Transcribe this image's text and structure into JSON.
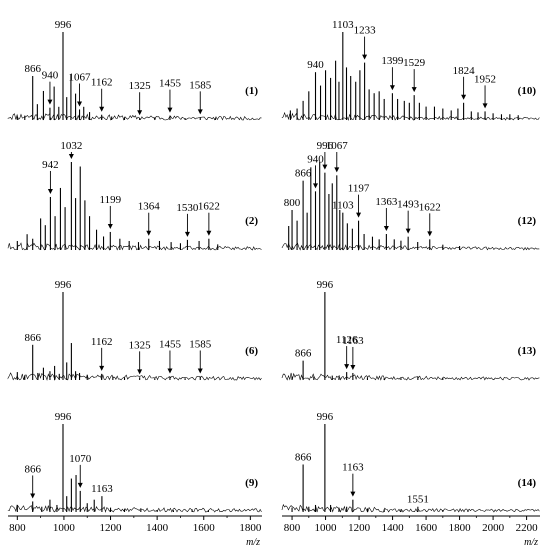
{
  "figure": {
    "left_axis": {
      "xlim": [
        760,
        1850
      ],
      "ticks": [
        800,
        1000,
        1200,
        1400,
        1600,
        1800
      ],
      "unit": "m/z"
    },
    "right_axis": {
      "xlim": [
        740,
        2280
      ],
      "ticks": [
        800,
        1000,
        1200,
        1400,
        1600,
        1800,
        2000,
        2200
      ],
      "unit": "m/z"
    }
  },
  "chart_data": [
    {
      "type": "line",
      "panel_label": "(1)",
      "column": "left",
      "xlabel": "",
      "ylabel": "",
      "xlim": [
        760,
        1850
      ],
      "peaks": [
        {
          "x": 800,
          "y": 4
        },
        {
          "x": 832,
          "y": 5
        },
        {
          "x": 866,
          "y": 50
        },
        {
          "x": 886,
          "y": 18
        },
        {
          "x": 912,
          "y": 33
        },
        {
          "x": 940,
          "y": 14
        },
        {
          "x": 958,
          "y": 38
        },
        {
          "x": 978,
          "y": 15
        },
        {
          "x": 996,
          "y": 100
        },
        {
          "x": 1012,
          "y": 26
        },
        {
          "x": 1030,
          "y": 52
        },
        {
          "x": 1050,
          "y": 30
        },
        {
          "x": 1067,
          "y": 12
        },
        {
          "x": 1085,
          "y": 15
        },
        {
          "x": 1110,
          "y": 9
        },
        {
          "x": 1162,
          "y": 6
        },
        {
          "x": 1205,
          "y": 4
        },
        {
          "x": 1260,
          "y": 3
        },
        {
          "x": 1325,
          "y": 2
        },
        {
          "x": 1390,
          "y": 3
        },
        {
          "x": 1455,
          "y": 5
        },
        {
          "x": 1520,
          "y": 2
        },
        {
          "x": 1585,
          "y": 3
        },
        {
          "x": 1650,
          "y": 2
        }
      ],
      "labels": [
        {
          "text": "866",
          "x": 866,
          "arrow": false
        },
        {
          "text": "996",
          "x": 996,
          "arrow": false
        },
        {
          "text": "940",
          "x": 940,
          "arrow": true
        },
        {
          "text": "1067",
          "x": 1067,
          "arrow": true
        },
        {
          "text": "1162",
          "x": 1162,
          "arrow": true
        },
        {
          "text": "1325",
          "x": 1325,
          "arrow": true
        },
        {
          "text": "1455",
          "x": 1455,
          "arrow": true
        },
        {
          "text": "1585",
          "x": 1585,
          "arrow": true
        }
      ]
    },
    {
      "type": "line",
      "panel_label": "(2)",
      "column": "left",
      "xlabel": "",
      "ylabel": "",
      "xlim": [
        760,
        1850
      ],
      "peaks": [
        {
          "x": 800,
          "y": 8
        },
        {
          "x": 842,
          "y": 14
        },
        {
          "x": 866,
          "y": 10
        },
        {
          "x": 900,
          "y": 28
        },
        {
          "x": 920,
          "y": 22
        },
        {
          "x": 942,
          "y": 47
        },
        {
          "x": 962,
          "y": 30
        },
        {
          "x": 985,
          "y": 55
        },
        {
          "x": 1005,
          "y": 38
        },
        {
          "x": 1032,
          "y": 78
        },
        {
          "x": 1050,
          "y": 46
        },
        {
          "x": 1070,
          "y": 74
        },
        {
          "x": 1090,
          "y": 44
        },
        {
          "x": 1110,
          "y": 30
        },
        {
          "x": 1140,
          "y": 18
        },
        {
          "x": 1170,
          "y": 12
        },
        {
          "x": 1199,
          "y": 16
        },
        {
          "x": 1240,
          "y": 10
        },
        {
          "x": 1280,
          "y": 8
        },
        {
          "x": 1320,
          "y": 7
        },
        {
          "x": 1364,
          "y": 10
        },
        {
          "x": 1410,
          "y": 8
        },
        {
          "x": 1460,
          "y": 7
        },
        {
          "x": 1500,
          "y": 6
        },
        {
          "x": 1530,
          "y": 9
        },
        {
          "x": 1580,
          "y": 8
        },
        {
          "x": 1622,
          "y": 10
        },
        {
          "x": 1660,
          "y": 5
        }
      ],
      "labels": [
        {
          "text": "942",
          "x": 942,
          "arrow": true
        },
        {
          "text": "1032",
          "x": 1032,
          "arrow": true
        },
        {
          "text": "1199",
          "x": 1199,
          "arrow": true
        },
        {
          "text": "1364",
          "x": 1364,
          "arrow": true
        },
        {
          "text": "1530",
          "x": 1530,
          "arrow": true
        },
        {
          "text": "1622",
          "x": 1622,
          "arrow": true
        }
      ]
    },
    {
      "type": "line",
      "panel_label": "(6)",
      "column": "left",
      "xlabel": "",
      "ylabel": "",
      "xlim": [
        760,
        1850
      ],
      "peaks": [
        {
          "x": 800,
          "y": 9
        },
        {
          "x": 832,
          "y": 5
        },
        {
          "x": 866,
          "y": 40
        },
        {
          "x": 888,
          "y": 8
        },
        {
          "x": 912,
          "y": 14
        },
        {
          "x": 940,
          "y": 10
        },
        {
          "x": 960,
          "y": 16
        },
        {
          "x": 980,
          "y": 7
        },
        {
          "x": 996,
          "y": 100
        },
        {
          "x": 1012,
          "y": 20
        },
        {
          "x": 1032,
          "y": 42
        },
        {
          "x": 1050,
          "y": 10
        },
        {
          "x": 1067,
          "y": 8
        },
        {
          "x": 1100,
          "y": 6
        },
        {
          "x": 1162,
          "y": 7
        },
        {
          "x": 1210,
          "y": 4
        },
        {
          "x": 1260,
          "y": 3
        },
        {
          "x": 1325,
          "y": 3
        },
        {
          "x": 1390,
          "y": 2
        },
        {
          "x": 1455,
          "y": 4
        },
        {
          "x": 1520,
          "y": 2
        },
        {
          "x": 1585,
          "y": 4
        }
      ],
      "labels": [
        {
          "text": "996",
          "x": 996,
          "arrow": false
        },
        {
          "text": "866",
          "x": 866,
          "arrow": false
        },
        {
          "text": "1162",
          "x": 1162,
          "arrow": true
        },
        {
          "text": "1325",
          "x": 1325,
          "arrow": true
        },
        {
          "text": "1455",
          "x": 1455,
          "arrow": true
        },
        {
          "text": "1585",
          "x": 1585,
          "arrow": true
        }
      ]
    },
    {
      "type": "line",
      "panel_label": "(9)",
      "column": "left",
      "xlabel": "",
      "ylabel": "",
      "xlim": [
        760,
        1850
      ],
      "peaks": [
        {
          "x": 800,
          "y": 8
        },
        {
          "x": 866,
          "y": 12
        },
        {
          "x": 905,
          "y": 6
        },
        {
          "x": 940,
          "y": 14
        },
        {
          "x": 970,
          "y": 8
        },
        {
          "x": 996,
          "y": 100
        },
        {
          "x": 1012,
          "y": 18
        },
        {
          "x": 1032,
          "y": 38
        },
        {
          "x": 1052,
          "y": 42
        },
        {
          "x": 1070,
          "y": 24
        },
        {
          "x": 1100,
          "y": 10
        },
        {
          "x": 1130,
          "y": 14
        },
        {
          "x": 1163,
          "y": 18
        },
        {
          "x": 1200,
          "y": 5
        },
        {
          "x": 1260,
          "y": 3
        },
        {
          "x": 1330,
          "y": 3
        },
        {
          "x": 1400,
          "y": 2
        },
        {
          "x": 1470,
          "y": 2
        },
        {
          "x": 1550,
          "y": 3
        },
        {
          "x": 1620,
          "y": 2
        }
      ],
      "labels": [
        {
          "text": "996",
          "x": 996,
          "arrow": false
        },
        {
          "text": "866",
          "x": 866,
          "arrow": true
        },
        {
          "text": "1070",
          "x": 1070,
          "arrow": true
        },
        {
          "text": "1163",
          "x": 1163,
          "arrow": false
        }
      ]
    },
    {
      "type": "line",
      "panel_label": "(10)",
      "column": "right",
      "xlabel": "",
      "ylabel": "",
      "xlim": [
        740,
        2280
      ],
      "peaks": [
        {
          "x": 790,
          "y": 10
        },
        {
          "x": 830,
          "y": 12
        },
        {
          "x": 866,
          "y": 20
        },
        {
          "x": 900,
          "y": 30
        },
        {
          "x": 940,
          "y": 50
        },
        {
          "x": 970,
          "y": 36
        },
        {
          "x": 1000,
          "y": 52
        },
        {
          "x": 1030,
          "y": 44
        },
        {
          "x": 1060,
          "y": 62
        },
        {
          "x": 1080,
          "y": 40
        },
        {
          "x": 1103,
          "y": 92
        },
        {
          "x": 1125,
          "y": 55
        },
        {
          "x": 1150,
          "y": 46
        },
        {
          "x": 1180,
          "y": 40
        },
        {
          "x": 1205,
          "y": 52
        },
        {
          "x": 1233,
          "y": 60
        },
        {
          "x": 1260,
          "y": 32
        },
        {
          "x": 1290,
          "y": 28
        },
        {
          "x": 1320,
          "y": 30
        },
        {
          "x": 1350,
          "y": 22
        },
        {
          "x": 1399,
          "y": 28
        },
        {
          "x": 1430,
          "y": 22
        },
        {
          "x": 1470,
          "y": 20
        },
        {
          "x": 1500,
          "y": 18
        },
        {
          "x": 1529,
          "y": 26
        },
        {
          "x": 1560,
          "y": 18
        },
        {
          "x": 1600,
          "y": 14
        },
        {
          "x": 1650,
          "y": 14
        },
        {
          "x": 1700,
          "y": 12
        },
        {
          "x": 1750,
          "y": 10
        },
        {
          "x": 1790,
          "y": 12
        },
        {
          "x": 1824,
          "y": 18
        },
        {
          "x": 1870,
          "y": 9
        },
        {
          "x": 1910,
          "y": 8
        },
        {
          "x": 1952,
          "y": 9
        },
        {
          "x": 2000,
          "y": 7
        },
        {
          "x": 2050,
          "y": 6
        },
        {
          "x": 2100,
          "y": 6
        },
        {
          "x": 2150,
          "y": 5
        }
      ],
      "labels": [
        {
          "text": "940",
          "x": 940,
          "arrow": false
        },
        {
          "text": "1103",
          "x": 1103,
          "arrow": false
        },
        {
          "text": "1233",
          "x": 1233,
          "arrow": true
        },
        {
          "text": "1399",
          "x": 1399,
          "arrow": true
        },
        {
          "text": "1529",
          "x": 1529,
          "arrow": true
        },
        {
          "text": "1824",
          "x": 1824,
          "arrow": true
        },
        {
          "text": "1952",
          "x": 1952,
          "arrow": true
        }
      ]
    },
    {
      "type": "line",
      "panel_label": "(12)",
      "column": "right",
      "xlabel": "",
      "ylabel": "",
      "xlim": [
        740,
        2280
      ],
      "peaks": [
        {
          "x": 780,
          "y": 18
        },
        {
          "x": 800,
          "y": 30
        },
        {
          "x": 830,
          "y": 22
        },
        {
          "x": 866,
          "y": 52
        },
        {
          "x": 890,
          "y": 28
        },
        {
          "x": 912,
          "y": 62
        },
        {
          "x": 940,
          "y": 44
        },
        {
          "x": 965,
          "y": 66
        },
        {
          "x": 996,
          "y": 58
        },
        {
          "x": 1020,
          "y": 42
        },
        {
          "x": 1040,
          "y": 50
        },
        {
          "x": 1067,
          "y": 56
        },
        {
          "x": 1085,
          "y": 30
        },
        {
          "x": 1103,
          "y": 28
        },
        {
          "x": 1130,
          "y": 20
        },
        {
          "x": 1160,
          "y": 16
        },
        {
          "x": 1197,
          "y": 22
        },
        {
          "x": 1230,
          "y": 12
        },
        {
          "x": 1280,
          "y": 10
        },
        {
          "x": 1320,
          "y": 8
        },
        {
          "x": 1363,
          "y": 12
        },
        {
          "x": 1410,
          "y": 8
        },
        {
          "x": 1450,
          "y": 7
        },
        {
          "x": 1493,
          "y": 10
        },
        {
          "x": 1550,
          "y": 6
        },
        {
          "x": 1622,
          "y": 8
        },
        {
          "x": 1700,
          "y": 4
        },
        {
          "x": 1800,
          "y": 3
        }
      ],
      "labels": [
        {
          "text": "800",
          "x": 800,
          "arrow": false
        },
        {
          "text": "866",
          "x": 866,
          "arrow": false
        },
        {
          "text": "940",
          "x": 940,
          "arrow": true
        },
        {
          "text": "996",
          "x": 996,
          "arrow": true
        },
        {
          "text": "1067",
          "x": 1067,
          "arrow": true
        },
        {
          "text": "1103",
          "x": 1103,
          "arrow": false
        },
        {
          "text": "1197",
          "x": 1197,
          "arrow": true
        },
        {
          "text": "1363",
          "x": 1363,
          "arrow": true
        },
        {
          "text": "1493",
          "x": 1493,
          "arrow": true
        },
        {
          "text": "1622",
          "x": 1622,
          "arrow": true
        }
      ]
    },
    {
      "type": "line",
      "panel_label": "(13)",
      "column": "right",
      "xlabel": "",
      "ylabel": "",
      "xlim": [
        740,
        2280
      ],
      "peaks": [
        {
          "x": 800,
          "y": 4
        },
        {
          "x": 866,
          "y": 22
        },
        {
          "x": 930,
          "y": 4
        },
        {
          "x": 996,
          "y": 100
        },
        {
          "x": 1040,
          "y": 5
        },
        {
          "x": 1080,
          "y": 3
        },
        {
          "x": 1126,
          "y": 9
        },
        {
          "x": 1163,
          "y": 8
        },
        {
          "x": 1250,
          "y": 3
        },
        {
          "x": 1350,
          "y": 2
        },
        {
          "x": 1450,
          "y": 2
        },
        {
          "x": 1551,
          "y": 4
        },
        {
          "x": 1700,
          "y": 2
        }
      ],
      "labels": [
        {
          "text": "996",
          "x": 996,
          "arrow": false
        },
        {
          "text": "866",
          "x": 866,
          "arrow": false
        },
        {
          "text": "1126",
          "x": 1126,
          "arrow": true
        },
        {
          "text": "1163",
          "x": 1163,
          "arrow": true
        }
      ]
    },
    {
      "type": "line",
      "panel_label": "(14)",
      "column": "right",
      "xlabel": "",
      "ylabel": "",
      "xlim": [
        740,
        2280
      ],
      "peaks": [
        {
          "x": 800,
          "y": 5
        },
        {
          "x": 866,
          "y": 54
        },
        {
          "x": 900,
          "y": 6
        },
        {
          "x": 940,
          "y": 8
        },
        {
          "x": 996,
          "y": 100
        },
        {
          "x": 1030,
          "y": 8
        },
        {
          "x": 1080,
          "y": 5
        },
        {
          "x": 1126,
          "y": 6
        },
        {
          "x": 1163,
          "y": 14
        },
        {
          "x": 1250,
          "y": 4
        },
        {
          "x": 1350,
          "y": 3
        },
        {
          "x": 1450,
          "y": 3
        },
        {
          "x": 1551,
          "y": 6
        },
        {
          "x": 1700,
          "y": 2
        },
        {
          "x": 1850,
          "y": 2
        }
      ],
      "labels": [
        {
          "text": "996",
          "x": 996,
          "arrow": false
        },
        {
          "text": "866",
          "x": 866,
          "arrow": false
        },
        {
          "text": "1163",
          "x": 1163,
          "arrow": true
        },
        {
          "text": "1551",
          "x": 1551,
          "arrow": false
        }
      ]
    }
  ]
}
